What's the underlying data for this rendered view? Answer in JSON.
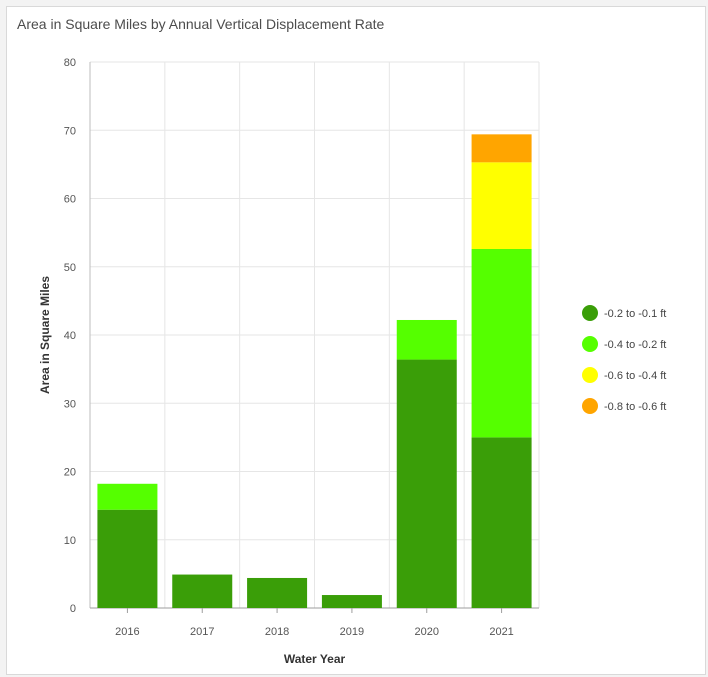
{
  "title": "Area in Square Miles by Annual Vertical Displacement Rate",
  "chart_data": {
    "type": "bar",
    "stacked": true,
    "title": "Area in Square Miles by Annual Vertical Displacement Rate",
    "xlabel": "Water Year",
    "ylabel": "Area in Square Miles",
    "categories": [
      "2016",
      "2017",
      "2018",
      "2019",
      "2020",
      "2021"
    ],
    "ylim": [
      0,
      80
    ],
    "yticks": [
      0,
      10,
      20,
      30,
      40,
      50,
      60,
      70,
      80
    ],
    "grid": true,
    "legend_position": "right",
    "series": [
      {
        "name": "-0.2 to -0.1 ft",
        "color": "#3a9e08",
        "values": [
          14.4,
          4.9,
          4.4,
          1.9,
          36.4,
          25.0
        ]
      },
      {
        "name": "-0.4 to -0.2 ft",
        "color": "#55ff00",
        "values": [
          3.8,
          0,
          0,
          0,
          5.8,
          27.6
        ]
      },
      {
        "name": "-0.6 to -0.4 ft",
        "color": "#ffff00",
        "values": [
          0,
          0,
          0,
          0,
          0,
          12.7
        ]
      },
      {
        "name": "-0.8 to -0.6 ft",
        "color": "#ffa500",
        "values": [
          0,
          0,
          0,
          0,
          0,
          4.1
        ]
      }
    ]
  }
}
